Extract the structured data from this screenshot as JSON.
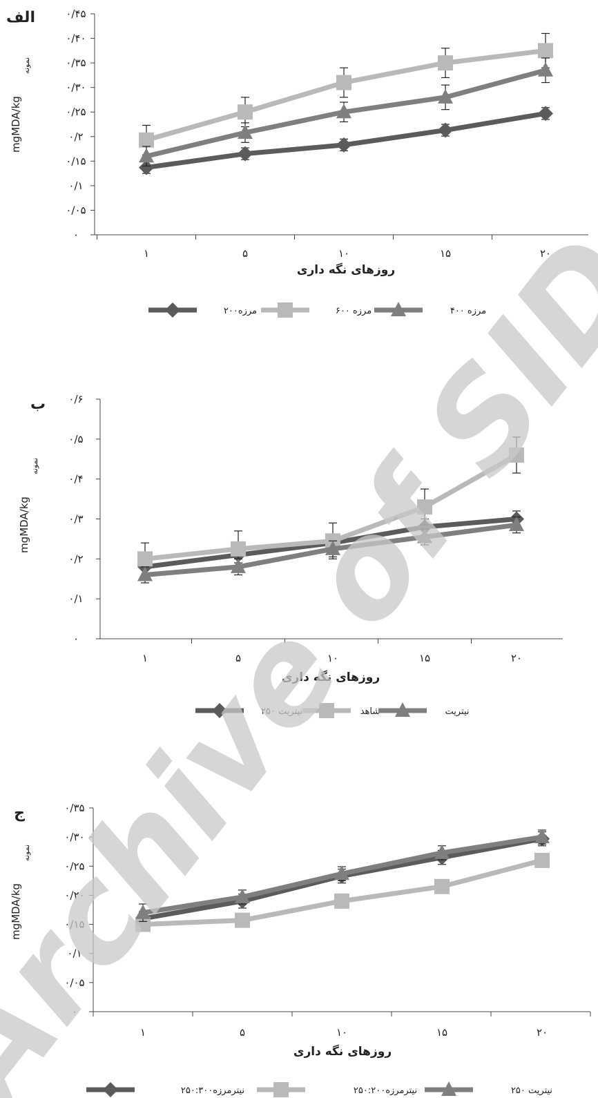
{
  "watermark": "Archive of SID",
  "colors": {
    "dark": "#5b5b5b",
    "light": "#b9b9b9",
    "mid": "#7f7f7f",
    "axis": "#444444"
  },
  "chart_data": [
    {
      "type": "line",
      "panel_label": "الف",
      "ylabel": "mgMDA/kg",
      "ylabel_sub": "نمونه",
      "xlabel": "روزهای نگه داری",
      "categories": [
        "۱",
        "۵",
        "۱۰",
        "۱۵",
        "۲۰"
      ],
      "ylim": [
        0,
        0.45
      ],
      "y_ticks": [
        0,
        0.05,
        0.1,
        0.15,
        0.2,
        0.25,
        0.3,
        0.35,
        0.4,
        0.45
      ],
      "y_tick_labels": [
        "۰",
        "۰/۰۵",
        "۰/۱",
        "۰/۱۵",
        "۰/۲",
        "۰/۲۵",
        "۰/۳۰",
        "۰/۳۵",
        "۰/۴۰",
        "۰/۴۵"
      ],
      "series": [
        {
          "name": "مرزه۲۰۰",
          "marker": "diamond",
          "color": "#5b5b5b",
          "values": [
            0.137,
            0.165,
            0.183,
            0.213,
            0.247
          ],
          "errors": [
            0.012,
            0.012,
            0.012,
            0.012,
            0.012
          ]
        },
        {
          "name": "مرزه ۶۰۰",
          "marker": "square",
          "color": "#b9b9b9",
          "values": [
            0.193,
            0.25,
            0.31,
            0.35,
            0.375
          ],
          "errors": [
            0.03,
            0.03,
            0.03,
            0.03,
            0.035
          ]
        },
        {
          "name": "مرزه ۴۰۰",
          "marker": "triangle",
          "color": "#7f7f7f",
          "values": [
            0.16,
            0.208,
            0.25,
            0.28,
            0.335
          ],
          "errors": [
            0.02,
            0.02,
            0.02,
            0.025,
            0.025
          ]
        }
      ]
    },
    {
      "type": "line",
      "panel_label": "ب",
      "ylabel": "mgMDA/kg",
      "ylabel_sub": "نمونه",
      "xlabel": "روزهای نگه داری",
      "categories": [
        "۱",
        "۵",
        "۱۰",
        "۱۵",
        "۲۰"
      ],
      "ylim": [
        0,
        0.6
      ],
      "y_ticks": [
        0,
        0.1,
        0.2,
        0.3,
        0.4,
        0.5,
        0.6
      ],
      "y_tick_labels": [
        "۰",
        "۰/۱",
        "۰/۲",
        "۰/۳",
        "۰/۴",
        "۰/۵",
        "۰/۶"
      ],
      "series": [
        {
          "name": "نیتریت ۲۵۰",
          "marker": "diamond",
          "color": "#5b5b5b",
          "values": [
            0.18,
            0.21,
            0.24,
            0.28,
            0.3
          ],
          "errors": [
            0.02,
            0.02,
            0.02,
            0.02,
            0.02
          ]
        },
        {
          "name": "شاهد",
          "marker": "square",
          "color": "#b9b9b9",
          "values": [
            0.2,
            0.225,
            0.245,
            0.33,
            0.46
          ],
          "errors": [
            0.04,
            0.045,
            0.045,
            0.045,
            0.045
          ]
        },
        {
          "name": "نیتریت",
          "marker": "triangle",
          "color": "#7f7f7f",
          "values": [
            0.16,
            0.18,
            0.225,
            0.255,
            0.285
          ],
          "errors": [
            0.02,
            0.02,
            0.02,
            0.02,
            0.02
          ]
        }
      ]
    },
    {
      "type": "line",
      "panel_label": "ج",
      "ylabel": "mgMDA/kg",
      "ylabel_sub": "نمونه",
      "xlabel": "روزهای نگه داری",
      "categories": [
        "۱",
        "۵",
        "۱۰",
        "۱۵",
        "۲۰"
      ],
      "ylim": [
        0,
        0.35
      ],
      "y_ticks": [
        0,
        0.05,
        0.1,
        0.15,
        0.2,
        0.25,
        0.3,
        0.35
      ],
      "y_tick_labels": [
        "۰",
        "۰/۰۵",
        "۰/۱",
        "۰/۱۵",
        "۰/۲۰",
        "۰/۲۵",
        "۰/۳۰",
        "۰/۳۵"
      ],
      "series": [
        {
          "name": "نیترمرزه۲۵۰:۳۰۰",
          "marker": "diamond",
          "color": "#5b5b5b",
          "values": [
            0.16,
            0.19,
            0.233,
            0.265,
            0.297
          ],
          "errors": [
            0.012,
            0.012,
            0.012,
            0.012,
            0.012
          ]
        },
        {
          "name": "نیترمرزه۲۵۰:۲۰۰",
          "marker": "square",
          "color": "#b9b9b9",
          "values": [
            0.15,
            0.157,
            0.19,
            0.215,
            0.26
          ],
          "errors": [
            0.012,
            0.012,
            0.012,
            0.012,
            0.012
          ]
        },
        {
          "name": "نیتریت ۲۵۰",
          "marker": "triangle",
          "color": "#7f7f7f",
          "values": [
            0.17,
            0.197,
            0.237,
            0.273,
            0.3
          ],
          "errors": [
            0.015,
            0.012,
            0.012,
            0.012,
            0.012
          ]
        }
      ]
    }
  ]
}
